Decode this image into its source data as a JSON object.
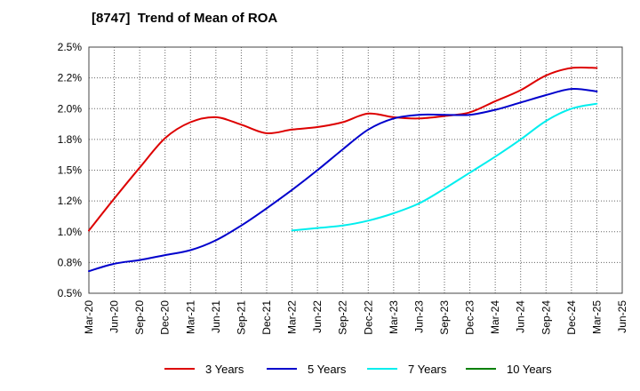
{
  "chart_data": {
    "type": "line",
    "title": "[8747]  Trend of Mean of ROA",
    "xlabel": "",
    "ylabel": "",
    "x_ticks": [
      "Mar-20",
      "Jun-20",
      "Sep-20",
      "Dec-20",
      "Mar-21",
      "Jun-21",
      "Sep-21",
      "Dec-21",
      "Mar-22",
      "Jun-22",
      "Sep-22",
      "Dec-22",
      "Mar-23",
      "Jun-23",
      "Sep-23",
      "Dec-23",
      "Mar-24",
      "Jun-24",
      "Sep-24",
      "Dec-24",
      "Mar-25",
      "Jun-25"
    ],
    "y_ticks": [
      "0.5%",
      "0.8%",
      "1.0%",
      "1.2%",
      "1.5%",
      "1.8%",
      "2.0%",
      "2.2%",
      "2.5%"
    ],
    "ylim": [
      0.5,
      2.5
    ],
    "grid": true,
    "legend_position": "bottom",
    "series": [
      {
        "name": "3 Years",
        "color": "#dd0000",
        "values": [
          1.01,
          1.27,
          1.52,
          1.76,
          1.89,
          1.93,
          1.87,
          1.8,
          1.83,
          1.85,
          1.89,
          1.96,
          1.93,
          1.92,
          1.94,
          1.97,
          2.06,
          2.15,
          2.27,
          2.33,
          2.33,
          null
        ]
      },
      {
        "name": "5 Years",
        "color": "#0000cc",
        "values": [
          0.68,
          0.74,
          0.77,
          0.81,
          0.85,
          0.93,
          1.05,
          1.19,
          1.34,
          1.5,
          1.67,
          1.83,
          1.92,
          1.95,
          1.95,
          1.95,
          1.99,
          2.05,
          2.11,
          2.16,
          2.14,
          null
        ]
      },
      {
        "name": "7 Years",
        "color": "#00eeee",
        "values": [
          null,
          null,
          null,
          null,
          null,
          null,
          null,
          null,
          1.01,
          1.03,
          1.05,
          1.09,
          1.15,
          1.23,
          1.35,
          1.48,
          1.61,
          1.75,
          1.9,
          2.0,
          2.04,
          null
        ]
      },
      {
        "name": "10 Years",
        "color": "#008000",
        "values": [
          null,
          null,
          null,
          null,
          null,
          null,
          null,
          null,
          null,
          null,
          null,
          null,
          null,
          null,
          null,
          null,
          null,
          null,
          null,
          null,
          null,
          null
        ]
      }
    ]
  }
}
